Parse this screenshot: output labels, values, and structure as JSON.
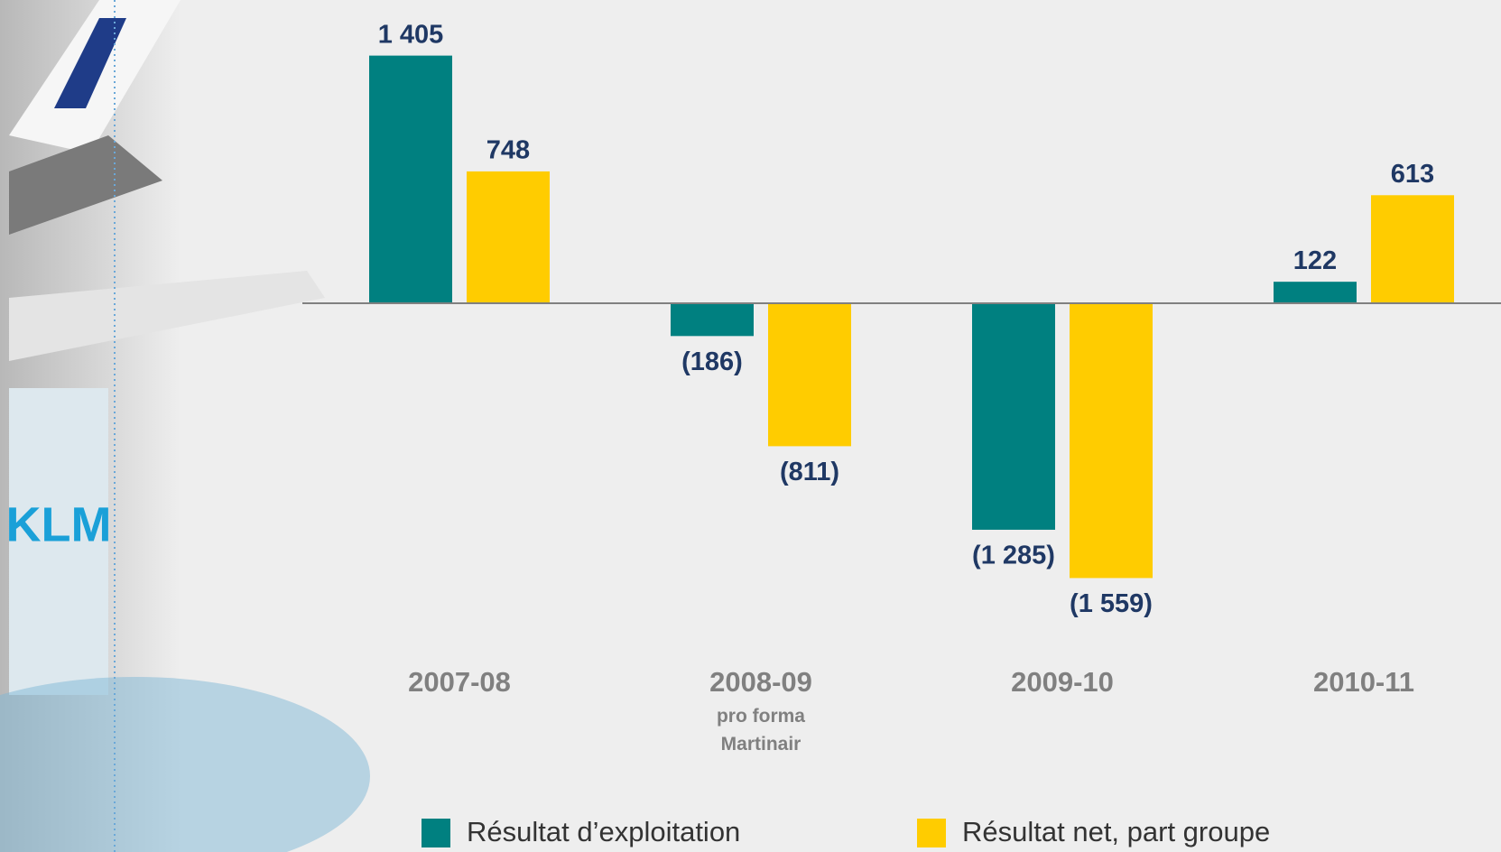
{
  "chart_data": {
    "type": "bar",
    "categories": [
      "2007-08",
      "2008-09",
      "2009-10",
      "2010-11"
    ],
    "category_notes": [
      null,
      "pro forma Martinair",
      null,
      null
    ],
    "series": [
      {
        "name": "Résultat d’exploitation",
        "color": "#008080",
        "values": [
          1405,
          -186,
          -1285,
          122
        ],
        "value_labels": [
          "1 405",
          "(186)",
          "(1 285)",
          "122"
        ]
      },
      {
        "name": "Résultat net, part groupe",
        "color": "#ffcc00",
        "values": [
          748,
          -811,
          -1559,
          613
        ],
        "value_labels": [
          "748",
          "(811)",
          "(1 559)",
          "613"
        ]
      }
    ],
    "ylim": [
      -1700,
      1700
    ]
  }
}
